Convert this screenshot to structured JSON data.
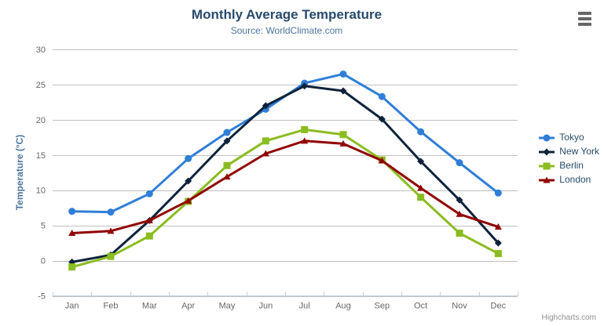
{
  "credits": "Highcharts.com",
  "colors": {
    "title": "#274b6d",
    "subtitle": "#4d759e",
    "axis_label": "#666666",
    "gridline": "#C0C0C0",
    "axis_line": "#C0D0E0",
    "legend_text": "#274b6d",
    "menu_icon": "#666666"
  },
  "chart_data": {
    "type": "line",
    "title": "Monthly Average Temperature",
    "subtitle": "Source: WorldClimate.com",
    "xlabel": "",
    "ylabel": "Temperature (°C)",
    "ylim": [
      -5,
      30
    ],
    "ytick_interval": 5,
    "grid": true,
    "legend_position": "right",
    "categories": [
      "Jan",
      "Feb",
      "Mar",
      "Apr",
      "May",
      "Jun",
      "Jul",
      "Aug",
      "Sep",
      "Oct",
      "Nov",
      "Dec"
    ],
    "series": [
      {
        "name": "Tokyo",
        "color": "#2f7ed8",
        "marker": "circle",
        "values": [
          7.0,
          6.9,
          9.5,
          14.5,
          18.2,
          21.5,
          25.2,
          26.5,
          23.3,
          18.3,
          13.9,
          9.6
        ]
      },
      {
        "name": "New York",
        "color": "#0d233a",
        "marker": "diamond",
        "values": [
          -0.2,
          0.8,
          5.7,
          11.3,
          17.0,
          22.0,
          24.8,
          24.1,
          20.1,
          14.1,
          8.6,
          2.5
        ]
      },
      {
        "name": "Berlin",
        "color": "#8bbc21",
        "marker": "square",
        "values": [
          -0.9,
          0.6,
          3.5,
          8.4,
          13.5,
          17.0,
          18.6,
          17.9,
          14.3,
          9.0,
          3.9,
          1.0
        ]
      },
      {
        "name": "London",
        "color": "#910000",
        "marker": "triangle",
        "values": [
          3.9,
          4.2,
          5.7,
          8.5,
          11.9,
          15.2,
          17.0,
          16.6,
          14.2,
          10.3,
          6.6,
          4.8
        ]
      }
    ]
  }
}
